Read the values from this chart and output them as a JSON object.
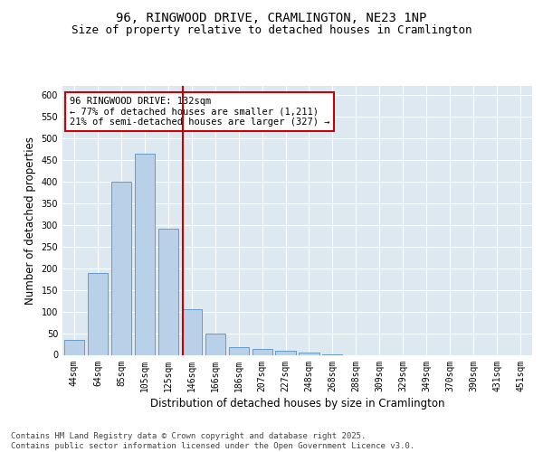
{
  "title_line1": "96, RINGWOOD DRIVE, CRAMLINGTON, NE23 1NP",
  "title_line2": "Size of property relative to detached houses in Cramlington",
  "xlabel": "Distribution of detached houses by size in Cramlington",
  "ylabel": "Number of detached properties",
  "bin_labels": [
    "44sqm",
    "64sqm",
    "85sqm",
    "105sqm",
    "125sqm",
    "146sqm",
    "166sqm",
    "186sqm",
    "207sqm",
    "227sqm",
    "248sqm",
    "268sqm",
    "288sqm",
    "309sqm",
    "329sqm",
    "349sqm",
    "370sqm",
    "390sqm",
    "431sqm",
    "451sqm"
  ],
  "bar_values": [
    35,
    188,
    400,
    463,
    290,
    105,
    48,
    18,
    13,
    10,
    5,
    1,
    0,
    0,
    0,
    0,
    0,
    0,
    0,
    0
  ],
  "bar_color": "#b8d0e8",
  "bar_edgecolor": "#6699cc",
  "bar_linewidth": 0.7,
  "vline_x": 4.62,
  "vline_color": "#cc0000",
  "annotation_text": "96 RINGWOOD DRIVE: 132sqm\n← 77% of detached houses are smaller (1,211)\n21% of semi-detached houses are larger (327) →",
  "annotation_box_edgecolor": "#cc0000",
  "ylim": [
    0,
    620
  ],
  "yticks": [
    0,
    50,
    100,
    150,
    200,
    250,
    300,
    350,
    400,
    450,
    500,
    550,
    600
  ],
  "background_color": "#dde8f0",
  "footer_text": "Contains HM Land Registry data © Crown copyright and database right 2025.\nContains public sector information licensed under the Open Government Licence v3.0.",
  "title_fontsize": 10,
  "subtitle_fontsize": 9,
  "axis_label_fontsize": 8.5,
  "tick_fontsize": 7,
  "annotation_fontsize": 7.5,
  "footer_fontsize": 6.5
}
